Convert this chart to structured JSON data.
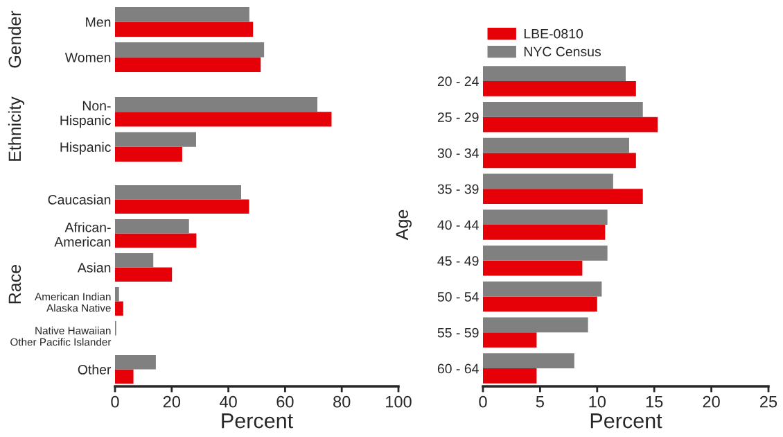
{
  "chart_data": [
    {
      "type": "bar",
      "orientation": "horizontal",
      "ylabel": "Gender",
      "categories": [
        "Men",
        "Women"
      ],
      "series": [
        {
          "color": "#e60008",
          "values": [
            48.7,
            51.4
          ]
        },
        {
          "color": "#808080",
          "values": [
            47.4,
            52.6
          ]
        }
      ],
      "xlim": [
        0,
        100
      ],
      "tick_labels": "y"
    },
    {
      "type": "bar",
      "orientation": "horizontal",
      "ylabel": "Ethnicity",
      "categories": [
        "Non-\nHispanic",
        "Hispanic"
      ],
      "series": [
        {
          "color": "#e60008",
          "values": [
            76.4,
            23.7
          ]
        },
        {
          "color": "#808080",
          "values": [
            71.4,
            28.6
          ]
        }
      ],
      "xlim": [
        0,
        100
      ],
      "tick_labels": "y"
    },
    {
      "type": "bar",
      "orientation": "horizontal",
      "ylabel": "Race",
      "xlabel": "Percent",
      "categories": [
        "Caucasian",
        "African-\nAmerican",
        "Asian",
        "American Indian\nAlaska Native",
        "Native Hawaiian\nOther Pacific Islander",
        "Other"
      ],
      "series": [
        {
          "color": "#e60008",
          "values": [
            47.3,
            28.7,
            20.1,
            2.9,
            0,
            6.5
          ]
        },
        {
          "color": "#808080",
          "values": [
            44.5,
            26.1,
            13.5,
            1.4,
            0.4,
            14.4
          ]
        }
      ],
      "xlim": [
        0,
        100
      ],
      "xticks": [
        0,
        20,
        40,
        60,
        80,
        100
      ]
    },
    {
      "type": "bar",
      "orientation": "horizontal",
      "ylabel": "Age",
      "xlabel": "Percent",
      "legend": "top left",
      "categories": [
        "20 - 24",
        "25 - 29",
        "30 - 34",
        "35 - 39",
        "40 - 44",
        "45 - 49",
        "50 - 54",
        "55 - 59",
        "60 - 64"
      ],
      "series": [
        {
          "name": "LBE-0810",
          "color": "#e60008",
          "values": [
            13.4,
            15.3,
            13.4,
            14.0,
            10.7,
            8.7,
            10.0,
            4.7,
            4.7
          ]
        },
        {
          "name": "NYC Census",
          "color": "#808080",
          "values": [
            12.5,
            14.0,
            12.8,
            11.4,
            10.9,
            10.9,
            10.4,
            9.2,
            8.0
          ]
        }
      ],
      "xlim": [
        0,
        25
      ],
      "xticks": [
        0,
        5,
        10,
        15,
        20,
        25
      ]
    }
  ]
}
